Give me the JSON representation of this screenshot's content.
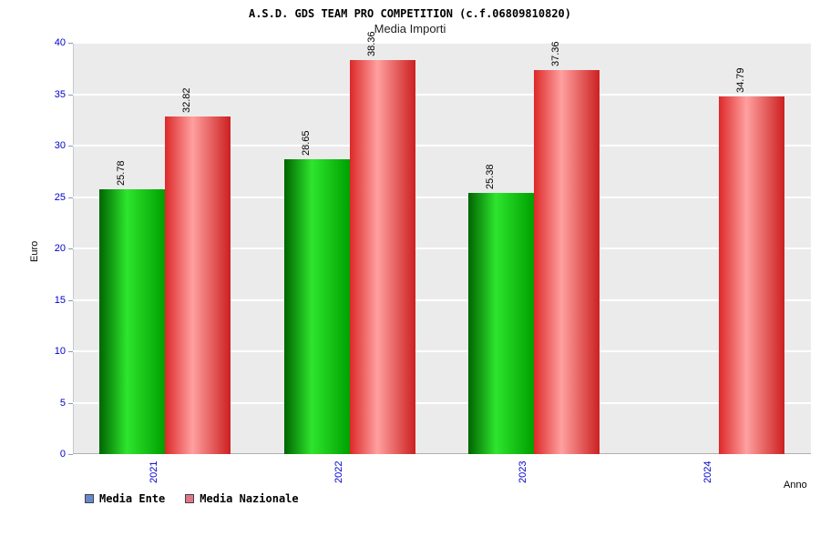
{
  "chart_data": {
    "type": "bar",
    "title": "A.S.D. GDS TEAM PRO COMPETITION (c.f.06809810820)",
    "subtitle": "Media Importi",
    "xlabel": "Anno",
    "ylabel": "Euro",
    "ylim": [
      0,
      40
    ],
    "yticks": [
      0,
      5,
      10,
      15,
      20,
      25,
      30,
      35,
      40
    ],
    "categories": [
      "2021",
      "2022",
      "2023",
      "2024"
    ],
    "series": [
      {
        "name": "Media Ente",
        "values": [
          25.78,
          28.65,
          25.38,
          null
        ],
        "legend_color": "#6688cc",
        "gradient": [
          "#006400",
          "#2ee52e",
          "#00a000"
        ]
      },
      {
        "name": "Media Nazionale",
        "values": [
          32.82,
          38.36,
          37.36,
          34.79
        ],
        "legend_color": "#dd7788",
        "gradient": [
          "#dd2828",
          "#ffa0a0",
          "#cc2020"
        ]
      }
    ],
    "grid": true,
    "legend_position": "bottom-left",
    "colors": {
      "axis_text": "#0000cc",
      "plot_background": "#ebebeb",
      "gridline": "#ffffff",
      "value_label": "#000000"
    }
  }
}
